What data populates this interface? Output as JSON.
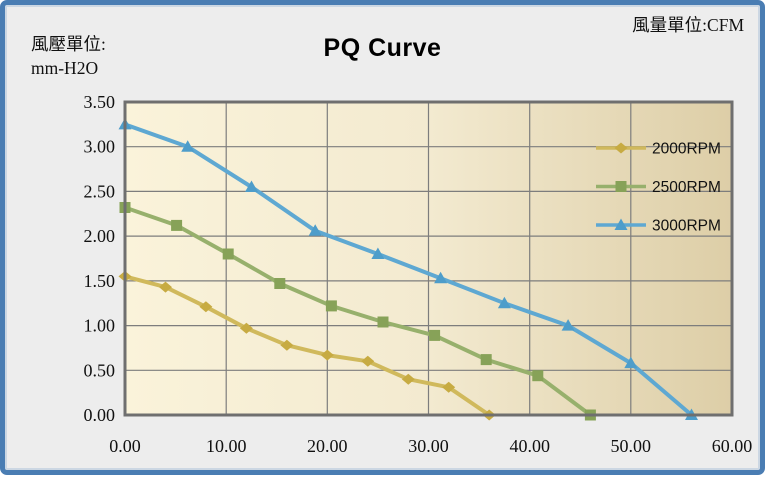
{
  "window": {
    "background": "#ededed",
    "frame_border_color": "#4a7db3"
  },
  "header": {
    "pressure_unit_line1": "風壓單位:",
    "pressure_unit_line2": "mm-H2O",
    "flow_unit": "風量單位:CFM"
  },
  "chart_data": {
    "type": "line",
    "title": "PQ Curve",
    "xlabel": "風量單位:CFM",
    "ylabel": "風壓單位: mm-H2O",
    "xlim": [
      0,
      60
    ],
    "ylim": [
      0,
      3.5
    ],
    "x_tick_values": [
      0,
      10,
      20,
      30,
      40,
      50,
      60
    ],
    "x_tick_labels": [
      "0.00",
      "10.00",
      "20.00",
      "30.00",
      "40.00",
      "50.00",
      "60.00"
    ],
    "y_tick_values": [
      0,
      0.5,
      1.0,
      1.5,
      2.0,
      2.5,
      3.0,
      3.5
    ],
    "y_tick_labels": [
      "0.00",
      "0.50",
      "1.00",
      "1.50",
      "2.00",
      "2.50",
      "3.00",
      "3.50"
    ],
    "grid": true,
    "grid_color": "#7d7d7d",
    "plot_border_color": "#6f6f6f",
    "plot_fill_gradient": [
      "#faf3da",
      "#f3ead0",
      "#ddcea7"
    ],
    "legend_position": "inside-right",
    "series": [
      {
        "name": "2000RPM",
        "color": "#d0b95c",
        "marker_fill": "#c7ab42",
        "marker": "diamond",
        "points": [
          [
            0,
            1.55
          ],
          [
            4,
            1.43
          ],
          [
            8,
            1.21
          ],
          [
            12,
            0.97
          ],
          [
            16,
            0.78
          ],
          [
            20,
            0.67
          ],
          [
            24,
            0.6
          ],
          [
            28,
            0.4
          ],
          [
            32,
            0.31
          ],
          [
            36,
            0.0
          ]
        ]
      },
      {
        "name": "2500RPM",
        "color": "#97b06c",
        "marker_fill": "#87a258",
        "marker": "square",
        "points": [
          [
            0,
            2.32
          ],
          [
            5.1,
            2.12
          ],
          [
            10.2,
            1.8
          ],
          [
            15.3,
            1.47
          ],
          [
            20.4,
            1.22
          ],
          [
            25.5,
            1.04
          ],
          [
            30.6,
            0.89
          ],
          [
            35.7,
            0.62
          ],
          [
            40.8,
            0.44
          ],
          [
            46,
            0.0
          ]
        ]
      },
      {
        "name": "3000RPM",
        "color": "#5ea8d2",
        "marker_fill": "#4e9dca",
        "marker": "triangle",
        "points": [
          [
            0,
            3.25
          ],
          [
            6.2,
            3.0
          ],
          [
            12.5,
            2.55
          ],
          [
            18.8,
            2.06
          ],
          [
            25,
            1.8
          ],
          [
            31.2,
            1.53
          ],
          [
            37.5,
            1.25
          ],
          [
            43.8,
            1.0
          ],
          [
            50,
            0.58
          ],
          [
            56,
            0.0
          ]
        ]
      }
    ]
  }
}
